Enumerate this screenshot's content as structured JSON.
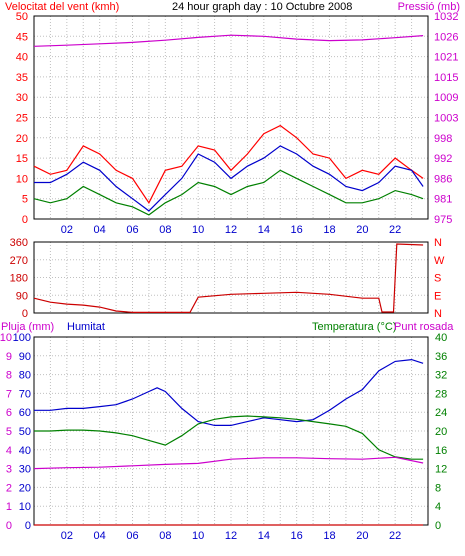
{
  "chart_data": [
    {
      "type": "line",
      "title": "24 hour graph day : 10 Octubre 2008",
      "left_axis": {
        "label": "Velocitat del vent (kmh)",
        "color": "#ff0000",
        "ylim": [
          0,
          50
        ],
        "ticks": [
          0,
          5,
          10,
          15,
          20,
          25,
          30,
          35,
          40,
          45,
          50
        ]
      },
      "right_axis": {
        "label": "Pressió (mb)",
        "color": "#cc00cc",
        "ylim": [
          975,
          1032
        ],
        "ticks": [
          975,
          981,
          986,
          992,
          998,
          1003,
          1009,
          1015,
          1021,
          1026,
          1032
        ]
      },
      "xlim": [
        0,
        24
      ],
      "x_ticks": [
        "02",
        "04",
        "06",
        "08",
        "10",
        "12",
        "14",
        "16",
        "18",
        "20",
        "22"
      ],
      "grid": true,
      "series": [
        {
          "color": "#cc00cc",
          "axis": "right",
          "x": [
            0,
            2,
            4,
            6,
            8,
            10,
            12,
            14,
            16,
            18,
            20,
            22,
            23.7
          ],
          "values": [
            1023.5,
            1023.8,
            1024.2,
            1024.6,
            1025.2,
            1026,
            1026.6,
            1026.3,
            1025.5,
            1025.1,
            1025.3,
            1025.9,
            1026.5
          ]
        },
        {
          "color": "#ff0000",
          "axis": "left",
          "x": [
            0,
            1,
            2,
            3,
            4,
            5,
            6,
            7,
            8,
            9,
            10,
            11,
            12,
            13,
            14,
            15,
            16,
            17,
            18,
            19,
            20,
            21,
            22,
            23,
            23.7
          ],
          "values": [
            13,
            11,
            12,
            18,
            16,
            12,
            10,
            4,
            12,
            13,
            18,
            17,
            12,
            16,
            21,
            23,
            20,
            16,
            15,
            10,
            12,
            11,
            15,
            12,
            10
          ]
        },
        {
          "color": "#0000cc",
          "axis": "left",
          "x": [
            0,
            1,
            2,
            3,
            4,
            5,
            6,
            7,
            8,
            9,
            10,
            11,
            12,
            13,
            14,
            15,
            16,
            17,
            18,
            19,
            20,
            21,
            22,
            23,
            23.7
          ],
          "values": [
            9,
            9,
            11,
            14,
            12,
            8,
            5,
            2,
            6,
            10,
            16,
            14,
            10,
            13,
            15,
            18,
            16,
            13,
            11,
            8,
            7,
            9,
            13,
            12,
            8
          ]
        },
        {
          "color": "#008000",
          "axis": "left",
          "x": [
            0,
            1,
            2,
            3,
            4,
            5,
            6,
            7,
            8,
            9,
            10,
            11,
            12,
            13,
            14,
            15,
            16,
            17,
            18,
            19,
            20,
            21,
            22,
            23,
            23.7
          ],
          "values": [
            5,
            4,
            5,
            8,
            6,
            4,
            3,
            1,
            4,
            6,
            9,
            8,
            6,
            8,
            9,
            12,
            10,
            8,
            6,
            4,
            4,
            5,
            7,
            6,
            5
          ]
        }
      ]
    },
    {
      "type": "line",
      "left_axis": {
        "ylim": [
          0,
          360
        ],
        "ticks": [
          0,
          90,
          180,
          270,
          360
        ]
      },
      "right_axis": {
        "ticks": [
          "N",
          "E",
          "S",
          "W",
          "N"
        ],
        "color": "#ff0000"
      },
      "xlim": [
        0,
        24
      ],
      "grid": true,
      "series": [
        {
          "color": "#cc0000",
          "x": [
            0,
            1,
            2,
            3,
            4,
            5,
            6,
            7,
            8,
            9,
            9.5,
            10,
            12,
            14,
            16,
            18,
            20,
            21,
            21.2,
            21.9,
            22.1,
            23.7
          ],
          "values": [
            75,
            55,
            45,
            40,
            30,
            10,
            3,
            3,
            3,
            3,
            3,
            80,
            95,
            100,
            105,
            95,
            75,
            75,
            5,
            5,
            350,
            345
          ]
        }
      ]
    },
    {
      "type": "line",
      "left_axis": {
        "label": "Pluja (mm)",
        "color": "#cc00cc",
        "ylim": [
          0,
          10
        ],
        "ticks": [
          0,
          1,
          2,
          3,
          4,
          5,
          6,
          7,
          8,
          9,
          10
        ]
      },
      "left_axis_2": {
        "label": "Humitat",
        "color": "#0000cc",
        "ylim": [
          0,
          100
        ],
        "ticks": [
          0,
          10,
          20,
          30,
          40,
          50,
          60,
          70,
          80,
          90,
          100
        ]
      },
      "right_axis": {
        "label": "Temperatura (°C)",
        "color": "#008000",
        "ylim": [
          0,
          40
        ],
        "ticks": [
          0,
          4,
          8,
          12,
          16,
          20,
          24,
          28,
          32,
          36,
          40
        ]
      },
      "right_axis_label_2": {
        "label": "Punt rosada",
        "color": "#cc00cc"
      },
      "xlim": [
        0,
        24
      ],
      "x_ticks": [
        "02",
        "04",
        "06",
        "08",
        "10",
        "12",
        "14",
        "16",
        "18",
        "20",
        "22"
      ],
      "grid": true,
      "series": [
        {
          "color": "#0000cc",
          "axis": "humidity",
          "x": [
            0,
            1,
            2,
            3,
            4,
            5,
            6,
            7,
            7.5,
            8,
            9,
            10,
            11,
            12,
            13,
            14,
            15,
            16,
            17,
            18,
            19,
            20,
            21,
            22,
            23,
            23.7
          ],
          "values": [
            61,
            61,
            62,
            62,
            63,
            64,
            67,
            71,
            73,
            71,
            62,
            55,
            53,
            53,
            55,
            57,
            56,
            55,
            56,
            61,
            67,
            72,
            82,
            87,
            88,
            86
          ]
        },
        {
          "color": "#008000",
          "axis": "right",
          "x": [
            0,
            1,
            2,
            3,
            4,
            5,
            6,
            7,
            8,
            9,
            10,
            11,
            12,
            13,
            14,
            15,
            16,
            17,
            18,
            19,
            20,
            21,
            22,
            23,
            23.7
          ],
          "values": [
            20,
            20,
            20.2,
            20.2,
            20,
            19.6,
            19,
            18,
            17,
            19,
            21.5,
            22.5,
            23,
            23.2,
            23,
            22.8,
            22.5,
            22,
            21.5,
            21,
            19.5,
            16,
            14.5,
            14,
            14
          ]
        },
        {
          "color": "#cc00cc",
          "axis": "right",
          "x": [
            0,
            2,
            4,
            6,
            8,
            10,
            12,
            14,
            16,
            18,
            20,
            22,
            23.7
          ],
          "values": [
            12,
            12.2,
            12.3,
            12.6,
            12.9,
            13.1,
            14,
            14.3,
            14.3,
            14.1,
            14,
            14.4,
            13.2
          ]
        },
        {
          "color": "#cc0000",
          "axis": "left",
          "x": [
            0,
            23.7
          ],
          "values": [
            0,
            0
          ]
        }
      ]
    }
  ]
}
